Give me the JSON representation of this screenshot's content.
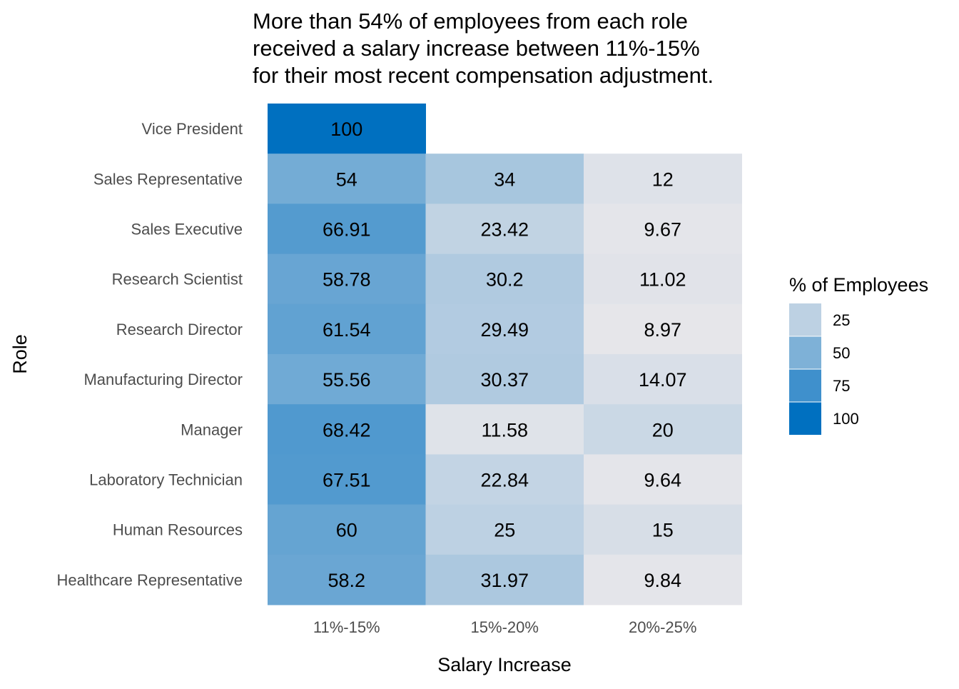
{
  "chart_data": {
    "type": "heatmap",
    "title": [
      "More than 54% of employees from each role",
      "received a salary increase between 11%-15%",
      "for their most recent compensation adjustment."
    ],
    "xlabel": "Salary Increase",
    "ylabel": "Role",
    "x_categories": [
      "11%-15%",
      "15%-20%",
      "20%-25%"
    ],
    "y_categories": [
      "Vice President",
      "Sales Representative",
      "Sales Executive",
      "Research Scientist",
      "Research Director",
      "Manufacturing Director",
      "Manager",
      "Laboratory Technician",
      "Human Resources",
      "Healthcare Representative"
    ],
    "values": [
      [
        100,
        null,
        null
      ],
      [
        54,
        34,
        12
      ],
      [
        66.91,
        23.42,
        9.67
      ],
      [
        58.78,
        30.2,
        11.02
      ],
      [
        61.54,
        29.49,
        8.97
      ],
      [
        55.56,
        30.37,
        14.07
      ],
      [
        68.42,
        11.58,
        20
      ],
      [
        67.51,
        22.84,
        9.64
      ],
      [
        60,
        25,
        15
      ],
      [
        58.2,
        31.97,
        9.84
      ]
    ],
    "legend": {
      "title": "% of Employees",
      "breaks": [
        25,
        50,
        75,
        100
      ],
      "position": "right"
    },
    "color_scale": {
      "low": "#e6e6ea",
      "high": "#0070c0",
      "domain": [
        8.97,
        100
      ]
    },
    "grid": false
  }
}
